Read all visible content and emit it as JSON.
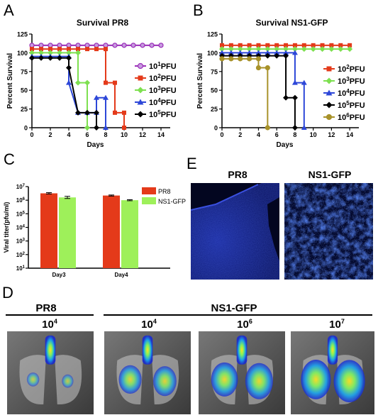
{
  "panels": {
    "A": "A",
    "B": "B",
    "C": "C",
    "D": "D",
    "E": "E"
  },
  "chart_data": [
    {
      "type": "line",
      "panel": "A",
      "title": "Survival PR8",
      "xlabel": "Days",
      "ylabel": "Percent Survival",
      "xlim": [
        0,
        15
      ],
      "ylim": [
        0,
        125
      ],
      "xticks": [
        "0",
        "2",
        "4",
        "6",
        "8",
        "10",
        "12",
        "14"
      ],
      "yticks": [
        "0",
        "25",
        "50",
        "75",
        "100",
        "125"
      ],
      "legend_position": "right",
      "series": [
        {
          "name_base": "10",
          "name_exp": "1",
          "name_unit": "PFU",
          "color": "#9b30b8",
          "fill": "#c79be0",
          "marker": "circle",
          "x": [
            0,
            1,
            2,
            3,
            4,
            5,
            6,
            7,
            8,
            9,
            10,
            11,
            12,
            13,
            14
          ],
          "y": [
            110,
            110,
            110,
            110,
            110,
            110,
            110,
            110,
            110,
            110,
            110,
            110,
            110,
            110,
            110
          ]
        },
        {
          "name_base": "10",
          "name_exp": "2",
          "name_unit": "PFU",
          "color": "#e43a1a",
          "fill": "#e43a1a",
          "marker": "square",
          "x": [
            0,
            1,
            2,
            3,
            4,
            5,
            6,
            7,
            8,
            8,
            9,
            9,
            10,
            10
          ],
          "y": [
            105,
            105,
            105,
            105,
            105,
            105,
            105,
            105,
            105,
            60,
            60,
            20,
            20,
            0
          ]
        },
        {
          "name_base": "10",
          "name_exp": "3",
          "name_unit": "PFU",
          "color": "#7ee050",
          "fill": "#7ee050",
          "marker": "diamond",
          "x": [
            0,
            1,
            2,
            3,
            4,
            5,
            5,
            6,
            6
          ],
          "y": [
            100,
            100,
            100,
            100,
            100,
            100,
            60,
            60,
            0
          ]
        },
        {
          "name_base": "10",
          "name_exp": "4",
          "name_unit": "PFU",
          "color": "#2d47d8",
          "fill": "#2d47d8",
          "marker": "triangle",
          "x": [
            0,
            1,
            2,
            3,
            4,
            4,
            5,
            6,
            7,
            7,
            8,
            8
          ],
          "y": [
            95,
            95,
            95,
            95,
            95,
            60,
            20,
            20,
            20,
            40,
            40,
            0
          ]
        },
        {
          "name_base": "10",
          "name_exp": "5",
          "name_unit": "PFU",
          "color": "#000000",
          "fill": "#000000",
          "marker": "diamond",
          "x": [
            0,
            1,
            2,
            3,
            4,
            4,
            5,
            6,
            7,
            7
          ],
          "y": [
            93,
            93,
            93,
            93,
            93,
            80,
            20,
            20,
            20,
            0
          ]
        }
      ]
    },
    {
      "type": "line",
      "panel": "B",
      "title": "Survival NS1-GFP",
      "xlabel": "Days",
      "ylabel": "Percent Survival",
      "xlim": [
        0,
        15
      ],
      "ylim": [
        0,
        125
      ],
      "xticks": [
        "0",
        "2",
        "4",
        "6",
        "8",
        "10",
        "12",
        "14"
      ],
      "yticks": [
        "0",
        "25",
        "50",
        "75",
        "100",
        "125"
      ],
      "legend_position": "right",
      "series": [
        {
          "name_base": "10",
          "name_exp": "2",
          "name_unit": "PFU",
          "color": "#e43a1a",
          "fill": "#e43a1a",
          "marker": "square",
          "x": [
            0,
            1,
            2,
            3,
            4,
            5,
            6,
            7,
            8,
            9,
            10,
            11,
            12,
            13,
            14
          ],
          "y": [
            110,
            110,
            110,
            110,
            110,
            110,
            110,
            110,
            110,
            110,
            110,
            110,
            110,
            110,
            110
          ]
        },
        {
          "name_base": "10",
          "name_exp": "3",
          "name_unit": "PFU",
          "color": "#7ee050",
          "fill": "#7ee050",
          "marker": "diamond",
          "x": [
            0,
            1,
            2,
            3,
            4,
            5,
            6,
            7,
            8,
            9,
            10,
            11,
            12,
            13,
            14
          ],
          "y": [
            105,
            105,
            105,
            105,
            105,
            105,
            105,
            105,
            105,
            105,
            105,
            105,
            105,
            105,
            105
          ]
        },
        {
          "name_base": "10",
          "name_exp": "4",
          "name_unit": "PFU",
          "color": "#2d47d8",
          "fill": "#2d47d8",
          "marker": "triangle",
          "x": [
            0,
            1,
            2,
            3,
            4,
            5,
            6,
            7,
            8,
            8,
            9,
            9
          ],
          "y": [
            100,
            100,
            100,
            100,
            100,
            100,
            100,
            100,
            100,
            60,
            60,
            0
          ]
        },
        {
          "name_base": "10",
          "name_exp": "5",
          "name_unit": "PFU",
          "color": "#000000",
          "fill": "#000000",
          "marker": "diamond",
          "x": [
            0,
            1,
            2,
            3,
            4,
            5,
            6,
            7,
            7,
            8,
            8
          ],
          "y": [
            96,
            96,
            96,
            96,
            96,
            96,
            96,
            96,
            40,
            40,
            0
          ]
        },
        {
          "name_base": "10",
          "name_exp": "6",
          "name_unit": "PFU",
          "color": "#a8922a",
          "fill": "#a8922a",
          "marker": "circle",
          "x": [
            0,
            1,
            2,
            3,
            4,
            4,
            5,
            5
          ],
          "y": [
            92,
            92,
            92,
            92,
            92,
            80,
            80,
            0
          ]
        }
      ]
    },
    {
      "type": "bar",
      "panel": "C",
      "ylabel": "Viral titer(pfu/ml)",
      "categories": [
        "Day3",
        "Day4"
      ],
      "yscale": "log",
      "ylim_exp": [
        1,
        7
      ],
      "ytick_base": "10",
      "yticks_exp": [
        "1",
        "2",
        "3",
        "4",
        "5",
        "6",
        "7"
      ],
      "legend_position": "top-right",
      "series": [
        {
          "name": "PR8",
          "color": "#e43a1a",
          "values": [
            3200000.0,
            2200000.0
          ],
          "err_log": [
            0.05,
            0.04
          ]
        },
        {
          "name": "NS1-GFP",
          "color": "#9ef05a",
          "values": [
            1600000.0,
            1000000.0
          ],
          "err_log": [
            0.08,
            0.04
          ]
        }
      ]
    }
  ],
  "panel_e": {
    "label_left": "PR8",
    "label_right": "NS1-GFP"
  },
  "panel_d": {
    "group_left": "PR8",
    "group_right": "NS1-GFP",
    "doses": [
      {
        "base": "10",
        "exp": "4"
      },
      {
        "base": "10",
        "exp": "4"
      },
      {
        "base": "10",
        "exp": "6"
      },
      {
        "base": "10",
        "exp": "7"
      }
    ]
  }
}
